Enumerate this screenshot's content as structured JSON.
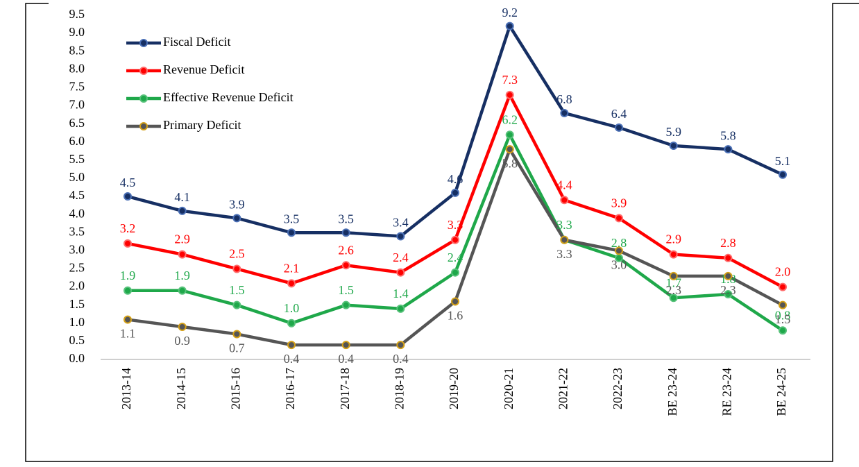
{
  "chart_data": {
    "type": "line",
    "categories": [
      "2013-14",
      "2014-15",
      "2015-16",
      "2016-17",
      "2017-18",
      "2018-19",
      "2019-20",
      "2020-21",
      "2021-22",
      "2022-23",
      "BE 23-24",
      "RE 23-24",
      "BE 24-25"
    ],
    "series": [
      {
        "name": "Fiscal Deficit",
        "color": "#162f63",
        "values": [
          4.5,
          4.1,
          3.9,
          3.5,
          3.5,
          3.4,
          4.6,
          9.2,
          6.8,
          6.4,
          5.9,
          5.8,
          5.1
        ],
        "value_labels": [
          "4.5",
          "4.1",
          "3.9",
          "3.5",
          "3.5",
          "3.4",
          "4.6",
          "9.2",
          "6.8",
          "6.4",
          "5.9",
          "5.8",
          "5.1"
        ]
      },
      {
        "name": "Revenue Deficit",
        "color": "#ff0000",
        "values": [
          3.2,
          2.9,
          2.5,
          2.1,
          2.6,
          2.4,
          3.3,
          7.3,
          4.4,
          3.9,
          2.9,
          2.8,
          2.0
        ],
        "value_labels": [
          "3.2",
          "2.9",
          "2.5",
          "2.1",
          "2.6",
          "2.4",
          "3.3",
          "7.3",
          "4.4",
          "3.9",
          "2.9",
          "2.8",
          "2.0"
        ]
      },
      {
        "name": "Effective Revenue Deficit",
        "color": "#1fa84a",
        "values": [
          1.9,
          1.9,
          1.5,
          1.0,
          1.5,
          1.4,
          2.4,
          6.2,
          3.3,
          2.8,
          1.7,
          1.8,
          0.8
        ],
        "value_labels": [
          "1.9",
          "1.9",
          "1.5",
          "1.0",
          "1.5",
          "1.4",
          "2.4",
          "6.2",
          "3.3",
          "2.8",
          "1.7",
          "1.8",
          "0.8"
        ]
      },
      {
        "name": "Primary Deficit",
        "color": "#555555",
        "values": [
          1.1,
          0.9,
          0.7,
          0.4,
          0.4,
          0.4,
          1.6,
          5.8,
          3.3,
          3.0,
          2.3,
          2.3,
          1.5
        ],
        "value_labels": [
          "1.1",
          "0.9",
          "0.7",
          "0.4",
          "0.4",
          "0.4",
          "1.6",
          "5.8",
          "3.3",
          "3.0",
          "2.3",
          "2.3",
          "1.5"
        ]
      }
    ],
    "ylim": [
      0,
      9.5
    ],
    "yticks": [
      {
        "value": 0,
        "label": "0.0"
      },
      {
        "value": 0.5,
        "label": "0.5"
      },
      {
        "value": 1,
        "label": "1.0"
      },
      {
        "value": 1.5,
        "label": "1.5"
      },
      {
        "value": 2,
        "label": "2.0"
      },
      {
        "value": 2.5,
        "label": "2.5"
      },
      {
        "value": 3,
        "label": "3.0"
      },
      {
        "value": 3.5,
        "label": "3.5"
      },
      {
        "value": 4,
        "label": "4.0"
      },
      {
        "value": 4.5,
        "label": "4.5"
      },
      {
        "value": 5,
        "label": "5.0"
      },
      {
        "value": 5.5,
        "label": "5.5"
      },
      {
        "value": 6,
        "label": "6.0"
      },
      {
        "value": 6.5,
        "label": "6.5"
      },
      {
        "value": 7,
        "label": "7.0"
      },
      {
        "value": 7.5,
        "label": "7.5"
      },
      {
        "value": 8,
        "label": "8.0"
      },
      {
        "value": 8.5,
        "label": "8.5"
      },
      {
        "value": 9,
        "label": "9.0"
      },
      {
        "value": 9.5,
        "label": "9.5"
      }
    ],
    "grid": false,
    "legend": "upper left"
  }
}
